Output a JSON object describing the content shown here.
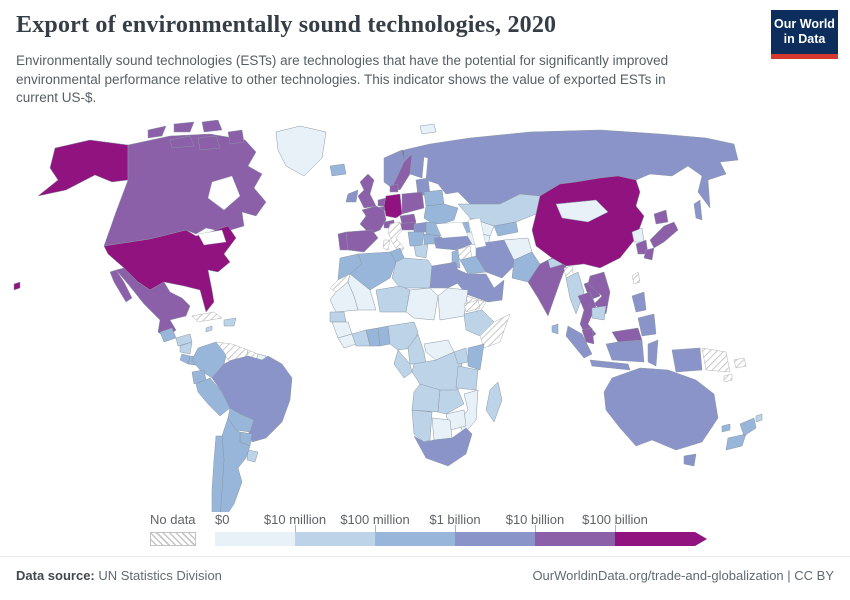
{
  "header": {
    "title": "Export of environmentally sound technologies, 2020",
    "subtitle": "Environmentally sound technologies (ESTs) are technologies that have the potential for significantly improved\nenvironmental performance relative to other technologies. This indicator shows the value of exported ESTs in\ncurrent US-$.",
    "logo_line1": "Our World",
    "logo_line2": "in Data",
    "logo_bg": "#0d2e5c",
    "logo_red": "#d4382e"
  },
  "map": {
    "no_data_label": "No data",
    "border_color": "#8a98a5",
    "no_data_border": "#b3b3b3",
    "hatch_color": "#bdbdbd",
    "bins": [
      {
        "label": "$0",
        "color": "#e7f1f7"
      },
      {
        "label": "$10 million",
        "color": "#bdd3e8"
      },
      {
        "label": "$100 million",
        "color": "#98b6d9"
      },
      {
        "label": "$1 billion",
        "color": "#8b94c9"
      },
      {
        "label": "$10 billion",
        "color": "#8c5fa9"
      },
      {
        "label": "$100 billion",
        "color": "#90137f"
      }
    ],
    "countries": {
      "usa": {
        "name": "United States",
        "bin": 5
      },
      "canada": {
        "name": "Canada",
        "bin": 4
      },
      "greenland": {
        "name": "Greenland",
        "bin": 0
      },
      "mexico": {
        "name": "Mexico",
        "bin": 4
      },
      "guatemala": {
        "name": "Guatemala",
        "bin": 2
      },
      "honduras": {
        "name": "Honduras",
        "bin": 1
      },
      "nicaragua": {
        "name": "Nicaragua",
        "bin": 1
      },
      "costa_rica": {
        "name": "Costa Rica",
        "bin": 2
      },
      "panama": {
        "name": "Panama",
        "bin": 2
      },
      "cuba": {
        "name": "Cuba",
        "bin": "no_data"
      },
      "hispaniola": {
        "name": "Dominican Republic",
        "bin": 1
      },
      "jamaica": {
        "name": "Jamaica",
        "bin": 1
      },
      "colombia": {
        "name": "Colombia",
        "bin": 2
      },
      "venezuela": {
        "name": "Venezuela",
        "bin": "no_data"
      },
      "guyana": {
        "name": "Guyana",
        "bin": "no_data"
      },
      "suriname": {
        "name": "Suriname",
        "bin": 0
      },
      "ecuador": {
        "name": "Ecuador",
        "bin": 2
      },
      "peru": {
        "name": "Peru",
        "bin": 2
      },
      "brazil": {
        "name": "Brazil",
        "bin": 3
      },
      "bolivia": {
        "name": "Bolivia",
        "bin": 2
      },
      "paraguay": {
        "name": "Paraguay",
        "bin": 2
      },
      "uruguay": {
        "name": "Uruguay",
        "bin": 1
      },
      "chile": {
        "name": "Chile",
        "bin": 2
      },
      "argentina": {
        "name": "Argentina",
        "bin": 2
      },
      "iceland": {
        "name": "Iceland",
        "bin": 2
      },
      "ireland": {
        "name": "Ireland",
        "bin": 3
      },
      "uk": {
        "name": "United Kingdom",
        "bin": 4
      },
      "portugal": {
        "name": "Portugal",
        "bin": 4
      },
      "spain": {
        "name": "Spain",
        "bin": 4
      },
      "france": {
        "name": "France",
        "bin": 4
      },
      "netherlands": {
        "name": "Netherlands",
        "bin": 4
      },
      "belgium": {
        "name": "Belgium",
        "bin": 4
      },
      "germany": {
        "name": "Germany",
        "bin": 5
      },
      "denmark": {
        "name": "Denmark",
        "bin": 4
      },
      "norway": {
        "name": "Norway",
        "bin": 3
      },
      "sweden": {
        "name": "Sweden",
        "bin": 4
      },
      "finland": {
        "name": "Finland",
        "bin": 3
      },
      "baltics": {
        "name": "Baltic states",
        "bin": 3
      },
      "poland": {
        "name": "Poland",
        "bin": 4
      },
      "czechia": {
        "name": "Czechia",
        "bin": 4
      },
      "switzerland": {
        "name": "Switzerland",
        "bin": 4
      },
      "austria": {
        "name": "Austria",
        "bin": 4
      },
      "hungary": {
        "name": "Hungary",
        "bin": 3
      },
      "romania": {
        "name": "Romania",
        "bin": 2
      },
      "ukraine": {
        "name": "Ukraine",
        "bin": 2
      },
      "belarus": {
        "name": "Belarus",
        "bin": 2
      },
      "balkans": {
        "name": "Serbia",
        "bin": 2
      },
      "bulgaria": {
        "name": "Bulgaria",
        "bin": 2
      },
      "greece": {
        "name": "Greece",
        "bin": 1
      },
      "italy": {
        "name": "Italy",
        "bin": "no_data"
      },
      "russia": {
        "name": "Russia",
        "bin": 3
      },
      "kazakhstan": {
        "name": "Kazakhstan",
        "bin": 1
      },
      "uzbekistan": {
        "name": "Uzbekistan",
        "bin": 0
      },
      "turkmenistan": {
        "name": "Turkmenistan",
        "bin": 0
      },
      "kyrgyzstan": {
        "name": "Kyrgyzstan",
        "bin": 2
      },
      "caucasus": {
        "name": "Georgia",
        "bin": 2
      },
      "turkey": {
        "name": "Turkey",
        "bin": 3
      },
      "syria": {
        "name": "Syria",
        "bin": "no_data"
      },
      "iraq": {
        "name": "Iraq",
        "bin": 2
      },
      "iran": {
        "name": "Iran",
        "bin": 3
      },
      "israel": {
        "name": "Israel",
        "bin": 2
      },
      "saudi_arabia": {
        "name": "Saudi Arabia",
        "bin": 3
      },
      "yemen": {
        "name": "Yemen",
        "bin": "no_data"
      },
      "oman": {
        "name": "Oman",
        "bin": 3
      },
      "afghanistan": {
        "name": "Afghanistan",
        "bin": 0
      },
      "pakistan": {
        "name": "Pakistan",
        "bin": 2
      },
      "india": {
        "name": "India",
        "bin": 4
      },
      "nepal": {
        "name": "Nepal",
        "bin": 1
      },
      "bangladesh": {
        "name": "Bangladesh",
        "bin": "no_data"
      },
      "sri_lanka": {
        "name": "Sri Lanka",
        "bin": 2
      },
      "china": {
        "name": "China",
        "bin": 5
      },
      "mongolia": {
        "name": "Mongolia",
        "bin": 0
      },
      "north_korea": {
        "name": "North Korea",
        "bin": 0
      },
      "south_korea": {
        "name": "South Korea",
        "bin": 4
      },
      "japan": {
        "name": "Japan",
        "bin": 4
      },
      "taiwan": {
        "name": "Taiwan",
        "bin": "no_data"
      },
      "myanmar": {
        "name": "Myanmar",
        "bin": 1
      },
      "laos": {
        "name": "Laos",
        "bin": 4
      },
      "thailand": {
        "name": "Thailand",
        "bin": 4
      },
      "vietnam": {
        "name": "Vietnam",
        "bin": 4
      },
      "cambodia": {
        "name": "Cambodia",
        "bin": 1
      },
      "malaysia": {
        "name": "Malaysia",
        "bin": 4
      },
      "indonesia": {
        "name": "Indonesia",
        "bin": 3
      },
      "philippines": {
        "name": "Philippines",
        "bin": 3
      },
      "morocco": {
        "name": "Morocco",
        "bin": 2
      },
      "western_sahara": {
        "name": "Western Sahara",
        "bin": "no_data"
      },
      "algeria": {
        "name": "Algeria",
        "bin": 2
      },
      "tunisia": {
        "name": "Tunisia",
        "bin": 2
      },
      "libya": {
        "name": "Libya",
        "bin": 1
      },
      "egypt": {
        "name": "Egypt",
        "bin": 3
      },
      "mauritania": {
        "name": "Mauritania",
        "bin": 0
      },
      "mali": {
        "name": "Mali",
        "bin": 0
      },
      "niger": {
        "name": "Niger",
        "bin": 1
      },
      "chad": {
        "name": "Chad",
        "bin": 0
      },
      "sudan": {
        "name": "Sudan",
        "bin": 0
      },
      "eritrea": {
        "name": "Eritrea",
        "bin": "no_data"
      },
      "ethiopia": {
        "name": "Ethiopia",
        "bin": 1
      },
      "somalia": {
        "name": "Somalia",
        "bin": "no_data"
      },
      "senegal": {
        "name": "Senegal",
        "bin": 1
      },
      "guinea": {
        "name": "Guinea",
        "bin": 0
      },
      "liberia": {
        "name": "Liberia",
        "bin": 0
      },
      "cote_divoire": {
        "name": "Cote d'Ivoire",
        "bin": 1
      },
      "ghana": {
        "name": "Ghana",
        "bin": 2
      },
      "togo_benin": {
        "name": "Benin",
        "bin": 2
      },
      "nigeria": {
        "name": "Nigeria",
        "bin": 1
      },
      "cameroon": {
        "name": "Cameroon",
        "bin": 1
      },
      "central_african_republic": {
        "name": "Central African Republic",
        "bin": 0
      },
      "drc": {
        "name": "Democratic Republic of Congo",
        "bin": 1
      },
      "congo_gabon": {
        "name": "Gabon",
        "bin": 1
      },
      "uganda": {
        "name": "Uganda",
        "bin": 1
      },
      "kenya": {
        "name": "Kenya",
        "bin": 2
      },
      "tanzania": {
        "name": "Tanzania",
        "bin": 1
      },
      "angola": {
        "name": "Angola",
        "bin": 1
      },
      "zambia": {
        "name": "Zambia",
        "bin": 1
      },
      "mozambique": {
        "name": "Mozambique",
        "bin": 0
      },
      "zimbabwe": {
        "name": "Zimbabwe",
        "bin": 0
      },
      "botswana": {
        "name": "Botswana",
        "bin": 0
      },
      "namibia": {
        "name": "Namibia",
        "bin": 1
      },
      "south_africa": {
        "name": "South Africa",
        "bin": 3
      },
      "madagascar": {
        "name": "Madagascar",
        "bin": 1
      },
      "australia": {
        "name": "Australia",
        "bin": 3
      },
      "new_zealand": {
        "name": "New Zealand",
        "bin": 2
      },
      "papua_new_guinea": {
        "name": "Papua New Guinea",
        "bin": "no_data"
      },
      "fiji": {
        "name": "Fiji",
        "bin": 1
      },
      "new_caledonia": {
        "name": "New Caledonia",
        "bin": 2
      },
      "solomon_islands": {
        "name": "Solomon Islands",
        "bin": "no_data"
      },
      "svalbard": {
        "name": "Svalbard",
        "bin": 0
      }
    }
  },
  "footer": {
    "source_label": "Data source:",
    "source_value": "UN Statistics Division",
    "right_text": "OurWorldinData.org/trade-and-globalization | CC BY"
  }
}
